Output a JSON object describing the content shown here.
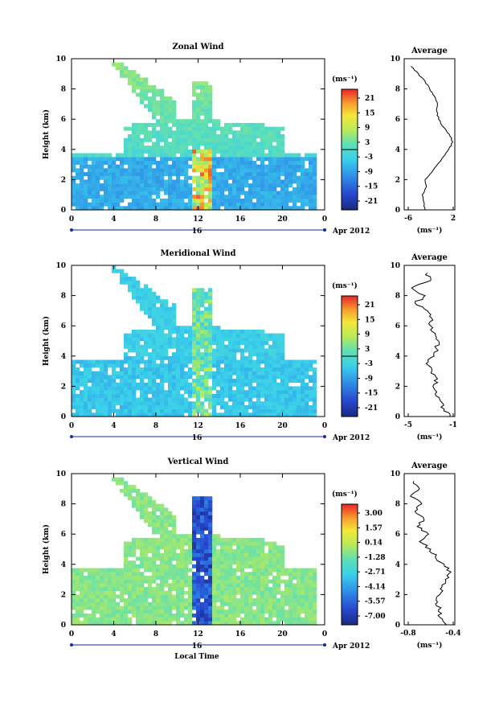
{
  "chart_data": [
    {
      "type": "heatmap",
      "title": "Zonal Wind",
      "ylabel": "Height (km)",
      "xlabel": "",
      "x_ticks": [
        "0",
        "4",
        "8",
        "12",
        "16",
        "20",
        "0"
      ],
      "xlim": [
        0,
        24
      ],
      "y_ticks": [
        "0",
        "2",
        "4",
        "6",
        "8",
        "10"
      ],
      "ylim": [
        0,
        10
      ],
      "date_marker": "16",
      "date_label": "Apr 2012",
      "colorbar": {
        "unit": "(ms⁻¹)",
        "tick_labels": [
          "21",
          "15",
          "9",
          "3",
          "-3",
          "-9",
          "-15",
          "-21"
        ],
        "range": [
          -24,
          24
        ]
      },
      "average_panel": {
        "title": "Average",
        "xlabel": "(ms⁻¹)",
        "x_ticks": [
          "-6",
          "2"
        ],
        "xlim": [
          -6,
          2
        ],
        "y_ticks": [
          "0",
          "2",
          "4",
          "6",
          "8",
          "10"
        ],
        "profile": [
          [
            -3.0,
            0.0
          ],
          [
            -3.2,
            0.5
          ],
          [
            -3.5,
            1.0
          ],
          [
            -2.8,
            1.5
          ],
          [
            -3.0,
            2.0
          ],
          [
            -1.8,
            2.5
          ],
          [
            -0.8,
            3.0
          ],
          [
            0.2,
            3.5
          ],
          [
            1.2,
            4.0
          ],
          [
            1.9,
            4.5
          ],
          [
            1.3,
            5.0
          ],
          [
            0.2,
            5.5
          ],
          [
            -0.6,
            6.0
          ],
          [
            -0.9,
            6.5
          ],
          [
            -0.8,
            7.0
          ],
          [
            -1.3,
            7.5
          ],
          [
            -2.2,
            8.0
          ],
          [
            -3.0,
            8.5
          ],
          [
            -4.2,
            9.0
          ],
          [
            -5.5,
            9.5
          ]
        ]
      }
    },
    {
      "type": "heatmap",
      "title": "Meridional Wind",
      "ylabel": "Height (km)",
      "xlabel": "",
      "x_ticks": [
        "0",
        "4",
        "8",
        "12",
        "16",
        "20",
        "0"
      ],
      "xlim": [
        0,
        24
      ],
      "y_ticks": [
        "0",
        "2",
        "4",
        "6",
        "8",
        "10"
      ],
      "ylim": [
        0,
        10
      ],
      "date_marker": "16",
      "date_label": "Apr 2012",
      "colorbar": {
        "unit": "(ms⁻¹)",
        "tick_labels": [
          "21",
          "15",
          "9",
          "3",
          "-3",
          "-9",
          "-15",
          "-21"
        ],
        "range": [
          -24,
          24
        ]
      },
      "average_panel": {
        "title": "Average",
        "xlabel": "(ms⁻¹)",
        "x_ticks": [
          "-5",
          "-1"
        ],
        "xlim": [
          -5,
          -1
        ],
        "y_ticks": [
          "0",
          "2",
          "4",
          "6",
          "8",
          "10"
        ],
        "profile": [
          [
            -1.3,
            0.0
          ],
          [
            -1.8,
            0.5
          ],
          [
            -2.1,
            1.0
          ],
          [
            -2.6,
            1.5
          ],
          [
            -2.8,
            2.0
          ],
          [
            -2.4,
            2.5
          ],
          [
            -2.9,
            3.0
          ],
          [
            -3.4,
            3.5
          ],
          [
            -2.7,
            4.0
          ],
          [
            -2.5,
            4.5
          ],
          [
            -2.3,
            5.0
          ],
          [
            -2.6,
            5.5
          ],
          [
            -3.0,
            6.0
          ],
          [
            -2.9,
            6.5
          ],
          [
            -3.3,
            7.0
          ],
          [
            -4.4,
            7.5
          ],
          [
            -3.5,
            8.0
          ],
          [
            -4.7,
            8.5
          ],
          [
            -3.0,
            9.0
          ],
          [
            -3.3,
            9.5
          ]
        ]
      }
    },
    {
      "type": "heatmap",
      "title": "Vertical Wind",
      "ylabel": "Height (km)",
      "xlabel": "Local Time",
      "x_ticks": [
        "0",
        "4",
        "8",
        "12",
        "16",
        "20",
        "0"
      ],
      "xlim": [
        0,
        24
      ],
      "y_ticks": [
        "0",
        "2",
        "4",
        "6",
        "8",
        "10"
      ],
      "ylim": [
        0,
        10
      ],
      "date_marker": "16",
      "date_label": "Apr 2012",
      "colorbar": {
        "unit": "(ms⁻¹)",
        "tick_labels": [
          "3.00",
          "1.57",
          "0.14",
          "-1.28",
          "-2.71",
          "-4.14",
          "-5.57",
          "-7.00"
        ],
        "range": [
          -7.5,
          3.5
        ]
      },
      "average_panel": {
        "title": "Average",
        "xlabel": "(ms⁻¹)",
        "x_ticks": [
          "-0.8",
          "-0.4"
        ],
        "xlim": [
          -0.8,
          -0.4
        ],
        "y_ticks": [
          "0",
          "2",
          "4",
          "6",
          "8",
          "10"
        ],
        "profile": [
          [
            -0.46,
            0.0
          ],
          [
            -0.52,
            0.5
          ],
          [
            -0.53,
            1.0
          ],
          [
            -0.54,
            1.5
          ],
          [
            -0.52,
            2.0
          ],
          [
            -0.5,
            2.5
          ],
          [
            -0.47,
            3.0
          ],
          [
            -0.42,
            3.5
          ],
          [
            -0.48,
            4.0
          ],
          [
            -0.56,
            4.5
          ],
          [
            -0.6,
            5.0
          ],
          [
            -0.7,
            5.5
          ],
          [
            -0.62,
            6.0
          ],
          [
            -0.72,
            6.5
          ],
          [
            -0.66,
            7.0
          ],
          [
            -0.74,
            7.5
          ],
          [
            -0.68,
            8.0
          ],
          [
            -0.78,
            8.5
          ],
          [
            -0.7,
            9.0
          ],
          [
            -0.75,
            9.5
          ]
        ]
      }
    }
  ]
}
